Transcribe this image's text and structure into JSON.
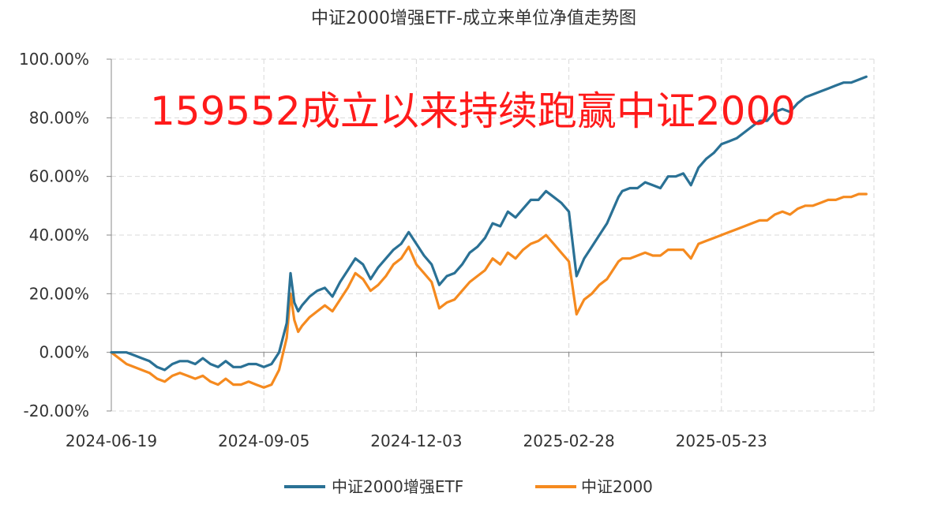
{
  "chart_data": {
    "type": "line",
    "title": "中证2000增强ETF-成立来单位净值走势图",
    "annotation": "159552成立以来持续跑赢中证2000",
    "y_tick_labels": [
      "100.00%",
      "80.00%",
      "60.00%",
      "40.00%",
      "20.00%",
      "0.00%",
      "-20.00%"
    ],
    "y_ticks": [
      100,
      80,
      60,
      40,
      20,
      0,
      -20
    ],
    "ylim": [
      -20,
      100
    ],
    "x_tick_labels": [
      "2024-06-19",
      "2024-09-05",
      "2024-12-03",
      "2025-02-28",
      "2025-05-23"
    ],
    "x_tick_positions": [
      0,
      0.2,
      0.4,
      0.6,
      0.8
    ],
    "grid": true,
    "legend_position": "bottom",
    "colors": {
      "etf": "#2a7195",
      "index": "#f58a1f"
    },
    "series": [
      {
        "name": "中证2000增强ETF",
        "t": [
          0,
          0.02,
          0.03,
          0.04,
          0.05,
          0.06,
          0.07,
          0.08,
          0.09,
          0.1,
          0.11,
          0.12,
          0.13,
          0.14,
          0.15,
          0.16,
          0.17,
          0.18,
          0.19,
          0.2,
          0.21,
          0.22,
          0.23,
          0.235,
          0.24,
          0.245,
          0.25,
          0.26,
          0.27,
          0.28,
          0.29,
          0.3,
          0.31,
          0.32,
          0.33,
          0.34,
          0.35,
          0.36,
          0.37,
          0.38,
          0.39,
          0.4,
          0.41,
          0.42,
          0.43,
          0.44,
          0.45,
          0.46,
          0.47,
          0.48,
          0.49,
          0.5,
          0.51,
          0.52,
          0.53,
          0.54,
          0.55,
          0.56,
          0.57,
          0.58,
          0.59,
          0.6,
          0.61,
          0.62,
          0.63,
          0.64,
          0.65,
          0.66,
          0.665,
          0.67,
          0.68,
          0.69,
          0.7,
          0.71,
          0.72,
          0.73,
          0.74,
          0.75,
          0.76,
          0.77,
          0.78,
          0.79,
          0.8,
          0.81,
          0.82,
          0.83,
          0.84,
          0.85,
          0.86,
          0.87,
          0.88,
          0.89,
          0.9,
          0.91,
          0.92,
          0.93,
          0.94,
          0.95,
          0.96,
          0.97,
          0.98,
          0.99
        ],
        "values": [
          0,
          0,
          -1,
          -2,
          -3,
          -5,
          -6,
          -4,
          -3,
          -3,
          -4,
          -2,
          -4,
          -5,
          -3,
          -5,
          -5,
          -4,
          -4,
          -5,
          -4,
          0,
          10,
          27,
          17,
          14,
          16,
          19,
          21,
          22,
          19,
          24,
          28,
          32,
          30,
          25,
          29,
          32,
          35,
          37,
          41,
          37,
          33,
          30,
          23,
          26,
          27,
          30,
          34,
          36,
          39,
          44,
          43,
          48,
          46,
          49,
          52,
          52,
          55,
          53,
          51,
          48,
          26,
          32,
          36,
          40,
          44,
          50,
          53,
          55,
          56,
          56,
          58,
          57,
          56,
          60,
          60,
          61,
          57,
          63,
          66,
          68,
          71,
          72,
          73,
          75,
          77,
          79,
          79,
          82,
          83,
          82,
          85,
          87,
          88,
          89,
          90,
          91,
          92,
          92,
          93,
          94
        ]
      },
      {
        "name": "中证2000",
        "t": [
          0,
          0.02,
          0.03,
          0.04,
          0.05,
          0.06,
          0.07,
          0.08,
          0.09,
          0.1,
          0.11,
          0.12,
          0.13,
          0.14,
          0.15,
          0.16,
          0.17,
          0.18,
          0.19,
          0.2,
          0.21,
          0.22,
          0.23,
          0.235,
          0.24,
          0.245,
          0.25,
          0.26,
          0.27,
          0.28,
          0.29,
          0.3,
          0.31,
          0.32,
          0.33,
          0.34,
          0.35,
          0.36,
          0.37,
          0.38,
          0.39,
          0.4,
          0.41,
          0.42,
          0.43,
          0.44,
          0.45,
          0.46,
          0.47,
          0.48,
          0.49,
          0.5,
          0.51,
          0.52,
          0.53,
          0.54,
          0.55,
          0.56,
          0.57,
          0.58,
          0.59,
          0.6,
          0.61,
          0.62,
          0.63,
          0.64,
          0.65,
          0.66,
          0.665,
          0.67,
          0.68,
          0.69,
          0.7,
          0.71,
          0.72,
          0.73,
          0.74,
          0.75,
          0.76,
          0.77,
          0.78,
          0.79,
          0.8,
          0.81,
          0.82,
          0.83,
          0.84,
          0.85,
          0.86,
          0.87,
          0.88,
          0.89,
          0.9,
          0.91,
          0.92,
          0.93,
          0.94,
          0.95,
          0.96,
          0.97,
          0.98,
          0.99
        ],
        "values": [
          0,
          -4,
          -5,
          -6,
          -7,
          -9,
          -10,
          -8,
          -7,
          -8,
          -9,
          -8,
          -10,
          -11,
          -9,
          -11,
          -11,
          -10,
          -11,
          -12,
          -11,
          -6,
          5,
          20,
          11,
          7,
          9,
          12,
          14,
          16,
          14,
          18,
          22,
          27,
          25,
          21,
          23,
          26,
          30,
          32,
          36,
          30,
          27,
          24,
          15,
          17,
          18,
          21,
          24,
          26,
          28,
          32,
          30,
          34,
          32,
          35,
          37,
          38,
          40,
          37,
          34,
          31,
          13,
          18,
          20,
          23,
          25,
          29,
          31,
          32,
          32,
          33,
          34,
          33,
          33,
          35,
          35,
          35,
          32,
          37,
          38,
          39,
          40,
          41,
          42,
          43,
          44,
          45,
          45,
          47,
          48,
          47,
          49,
          50,
          50,
          51,
          52,
          52,
          53,
          53,
          54,
          54
        ]
      }
    ]
  }
}
